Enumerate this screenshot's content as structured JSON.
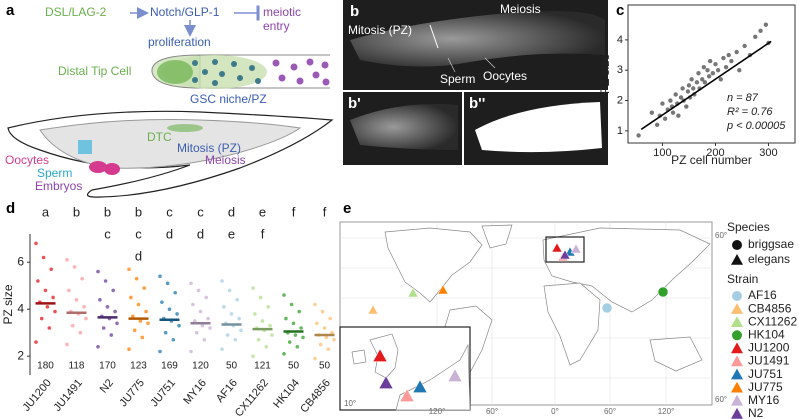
{
  "panel_labels": [
    "a",
    "b",
    "b'",
    "b''",
    "c",
    "d",
    "e"
  ],
  "diagram": {
    "ligand": "DSL/LAG-2",
    "receptor": "Notch/GLP-1",
    "entry_1": "meiotic",
    "entry_2": "entry",
    "proliferation": "proliferation",
    "dtc_long": "Distal Tip Cell",
    "niche": "GSC niche/PZ",
    "dtc": "DTC",
    "mitosis": "Mitosis (PZ)",
    "meiosis": "Meiosis",
    "oocytes": "Oocytes",
    "sperm": "Sperm",
    "embryos": "Embryos"
  },
  "micrograph": {
    "mitosis": "Mitosis (PZ)",
    "meiosis": "Meiosis",
    "sperm": "Sperm",
    "oocytes": "Oocytes"
  },
  "chart_data": [
    {
      "type": "scatter",
      "x": [
        55,
        80,
        90,
        95,
        100,
        105,
        110,
        115,
        118,
        120,
        125,
        128,
        130,
        135,
        138,
        140,
        145,
        148,
        150,
        152,
        155,
        158,
        160,
        165,
        168,
        170,
        175,
        178,
        180,
        185,
        188,
        190,
        195,
        200,
        205,
        210,
        215,
        220,
        225,
        230,
        240,
        245,
        255,
        265,
        275,
        285,
        295,
        300
      ],
      "y": [
        0.85,
        1.6,
        1.2,
        1.5,
        1.9,
        1.4,
        1.7,
        2.0,
        1.8,
        1.6,
        2.2,
        1.9,
        1.5,
        2.1,
        2.4,
        2.0,
        1.8,
        2.3,
        2.5,
        2.1,
        2.7,
        2.4,
        2.2,
        2.6,
        2.9,
        2.4,
        2.7,
        3.1,
        2.6,
        3.0,
        2.8,
        3.3,
        2.9,
        3.2,
        3.0,
        2.7,
        3.4,
        3.1,
        3.5,
        3.3,
        3.6,
        3.0,
        3.8,
        3.5,
        4.1,
        4.3,
        4.5,
        3.9
      ],
      "color": "#555555",
      "trend": {
        "x": [
          60,
          305
        ],
        "y": [
          1.05,
          3.95
        ],
        "color": "#000000"
      },
      "xlim": [
        35,
        350
      ],
      "xticks": [
        100,
        200,
        300
      ],
      "ylim": [
        0.6,
        5.15
      ],
      "yticks": [
        1,
        2,
        3,
        4
      ],
      "x_label": "PZ cell number",
      "y_label": "PZ size",
      "annotations": [
        "n = 87",
        "R² = 0.76",
        "p < 0.00005"
      ]
    },
    {
      "type": "dot",
      "categories": [
        "JU1200",
        "JU1491",
        "N2",
        "JU775",
        "JU751",
        "MY16",
        "AF16",
        "CX11262",
        "HK104",
        "CB4856"
      ],
      "colors": [
        "#e31a1c",
        "#fb9a99",
        "#6a3d9a",
        "#ff7f00",
        "#1f78b4",
        "#cab2d6",
        "#a6cee3",
        "#b2df8a",
        "#33a02c",
        "#fdbf6f"
      ],
      "values": [
        [
          2.6,
          3.2,
          3.6,
          3.9,
          4.1,
          4.3,
          4.5,
          4.8,
          5.2,
          5.7,
          6.2,
          6.8
        ],
        [
          2.5,
          3.0,
          3.3,
          3.6,
          3.8,
          3.9,
          4.1,
          4.4,
          4.8,
          5.3,
          5.8,
          6.1
        ],
        [
          2.4,
          2.9,
          3.2,
          3.4,
          3.6,
          3.7,
          3.9,
          4.1,
          4.4,
          4.8,
          5.2,
          5.6
        ],
        [
          2.3,
          2.8,
          3.1,
          3.4,
          3.5,
          3.7,
          3.9,
          4.2,
          4.5,
          4.9,
          5.3,
          5.7
        ],
        [
          2.2,
          2.7,
          3.0,
          3.3,
          3.5,
          3.6,
          3.8,
          4.0,
          4.3,
          4.7,
          5.1,
          5.4
        ],
        [
          2.2,
          2.7,
          3.0,
          3.2,
          3.3,
          3.5,
          3.6,
          3.9,
          4.2,
          4.5,
          4.8,
          5.1
        ],
        [
          2.3,
          2.7,
          2.9,
          3.1,
          3.3,
          3.4,
          3.6,
          3.8,
          4.1,
          4.4,
          4.8,
          5.2
        ],
        [
          2.0,
          2.4,
          2.7,
          2.9,
          3.1,
          3.2,
          3.3,
          3.5,
          3.8,
          4.1,
          4.5,
          4.9
        ],
        [
          2.1,
          2.4,
          2.6,
          2.8,
          2.9,
          3.0,
          3.2,
          3.4,
          3.6,
          3.9,
          4.2,
          4.6
        ],
        [
          1.9,
          2.3,
          2.5,
          2.7,
          2.8,
          2.9,
          3.0,
          3.2,
          3.4,
          3.6,
          3.9,
          4.2
        ]
      ],
      "means": [
        4.25,
        3.85,
        3.65,
        3.6,
        3.55,
        3.4,
        3.35,
        3.15,
        3.05,
        2.9
      ],
      "counts": [
        "180",
        "118",
        "170",
        "123",
        "169",
        "120",
        "50",
        "121",
        "50",
        "50"
      ],
      "letters": [
        [
          "a"
        ],
        [
          "b"
        ],
        [
          "b",
          "c"
        ],
        [
          "b",
          "c",
          "d"
        ],
        [
          "c",
          "d"
        ],
        [
          "c",
          "d"
        ],
        [
          "d",
          "e"
        ],
        [
          "e",
          "f"
        ],
        [
          "f"
        ],
        [
          "f"
        ]
      ],
      "ylim": [
        1.2,
        7.2
      ],
      "yticks": [
        2,
        4,
        6
      ],
      "y_label": "PZ size"
    }
  ],
  "map": {
    "lon_labels": [
      "120°",
      "60°",
      "0°",
      "60°",
      "120°"
    ],
    "lat_labels": [
      "60°",
      "60°"
    ],
    "inset_label": "10°",
    "legend": {
      "species_title": "Species",
      "species": [
        "briggsae",
        "elegans"
      ],
      "strain_title": "Strain",
      "strains": [
        "AF16",
        "CB4856",
        "CX11262",
        "HK104",
        "JU1200",
        "JU1491",
        "JU751",
        "JU775",
        "MY16",
        "N2"
      ],
      "colors": [
        "#a6cee3",
        "#fdbf6f",
        "#b2df8a",
        "#33a02c",
        "#e31a1c",
        "#fb9a99",
        "#1f78b4",
        "#ff7f00",
        "#cab2d6",
        "#6a3d9a"
      ]
    }
  }
}
